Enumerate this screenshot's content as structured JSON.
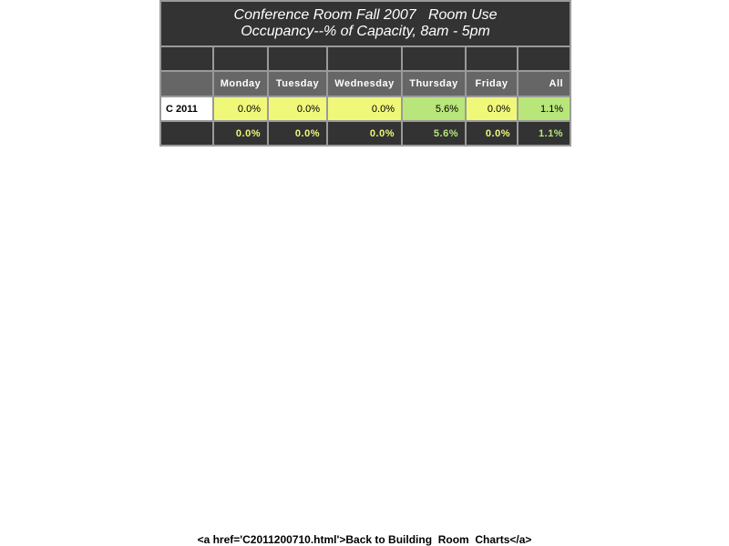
{
  "report": {
    "title_line1": "Conference Room Fall 2007   Room Use",
    "title_line2": "Occupancy--% of Capacity, 8am - 5pm",
    "columns": [
      "Monday",
      "Tuesday",
      "Wednesday",
      "Thursday",
      "Friday",
      "All"
    ],
    "rows": [
      {
        "room": "C 2011",
        "values": [
          "0.0%",
          "0.0%",
          "0.0%",
          "5.6%",
          "0.0%",
          "1.1%"
        ]
      }
    ],
    "totals": [
      "0.0%",
      "0.0%",
      "0.0%",
      "5.6%",
      "0.0%",
      "1.1%"
    ]
  },
  "colors": {
    "header_bg": "#333333",
    "column_header_bg": "#666666",
    "low_value": "#f0f87a",
    "higher_value": "#b8e67a"
  },
  "footer": {
    "link_text": "<a href='C2011200710.html'>Back to Building  Room  Charts</a>"
  }
}
